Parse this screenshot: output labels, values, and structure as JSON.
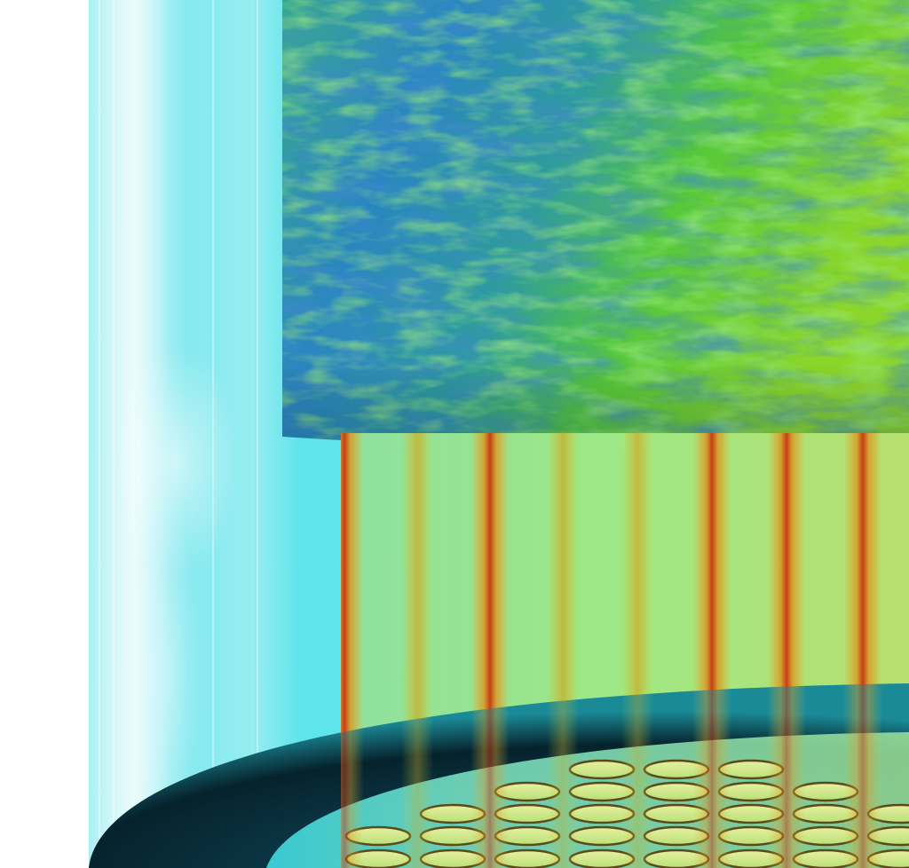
{
  "image": {
    "subject": "volume-render",
    "colors": {
      "background": "#ffffff",
      "vessel_cyan": "#3fe6ea",
      "vessel_dark": "#062a36",
      "turbulent_blue": "#1e6cc8",
      "turbulent_green": "#46c83a",
      "jet_yellow": "#c8d83a",
      "jet_red": "#d03a14",
      "plate_teal": "#0a3e4a"
    }
  }
}
